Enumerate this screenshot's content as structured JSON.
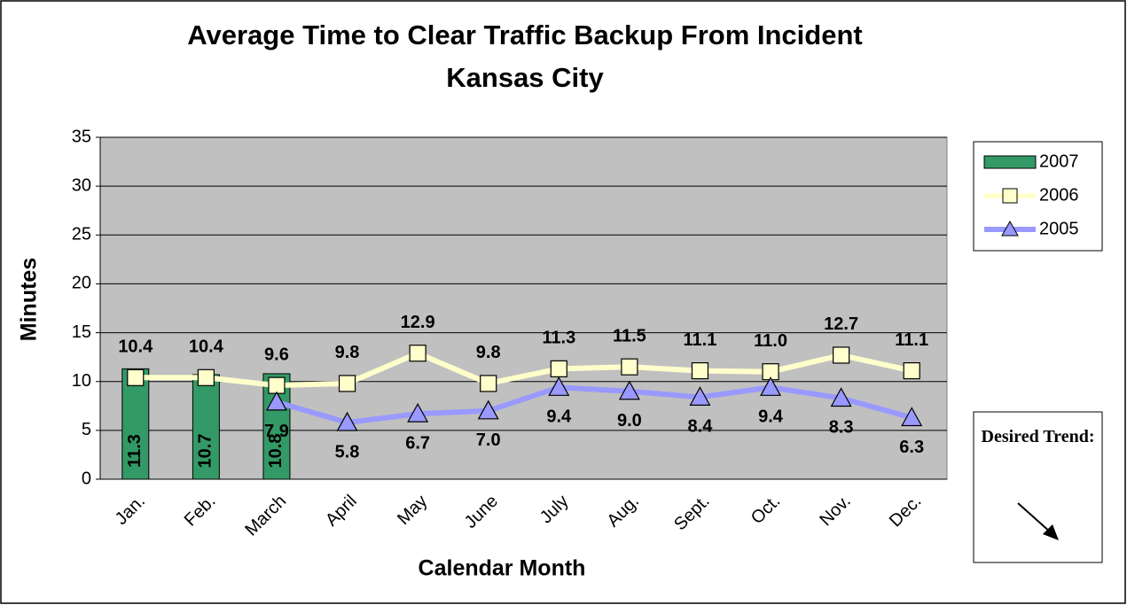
{
  "chart_data": {
    "type": "bar-line",
    "title": "Average Time to Clear Traffic Backup From Incident",
    "subtitle": "Kansas City",
    "x_label": "Calendar Month",
    "y_label": "Minutes",
    "annotation": "Desired Trend:",
    "categories": [
      "Jan.",
      "Feb.",
      "March",
      "April",
      "May",
      "June",
      "July",
      "Aug.",
      "Sept.",
      "Oct.",
      "Nov.",
      "Dec."
    ],
    "ylim": [
      0,
      35
    ],
    "yticks": [
      0,
      5,
      10,
      15,
      20,
      25,
      30,
      35
    ],
    "grid": true,
    "series": [
      {
        "name": "2007",
        "kind": "bar",
        "color": "#339966",
        "values": [
          11.3,
          10.7,
          10.8,
          null,
          null,
          null,
          null,
          null,
          null,
          null,
          null,
          null
        ],
        "value_labels": [
          "11.3",
          "10.7",
          "10.8",
          null,
          null,
          null,
          null,
          null,
          null,
          null,
          null,
          null
        ]
      },
      {
        "name": "2006",
        "kind": "line",
        "marker": "square",
        "color": "#ffffcc",
        "values": [
          10.4,
          10.4,
          9.6,
          9.8,
          12.9,
          9.8,
          11.3,
          11.5,
          11.1,
          11.0,
          12.7,
          11.1
        ],
        "value_labels": [
          "10.4",
          "10.4",
          "9.6",
          "9.8",
          "12.9",
          "9.8",
          "11.3",
          "11.5",
          "11.1",
          "11.0",
          "12.7",
          "11.1"
        ]
      },
      {
        "name": "2005",
        "kind": "line",
        "marker": "triangle",
        "color": "#9999ff",
        "values": [
          null,
          null,
          7.9,
          5.8,
          6.7,
          7.0,
          9.4,
          9.0,
          8.4,
          9.4,
          8.3,
          6.3
        ],
        "value_labels": [
          null,
          null,
          "7.9",
          "5.8",
          "6.7",
          "7.0",
          "9.4",
          "9.0",
          "8.4",
          "9.4",
          "8.3",
          "6.3"
        ]
      }
    ]
  }
}
